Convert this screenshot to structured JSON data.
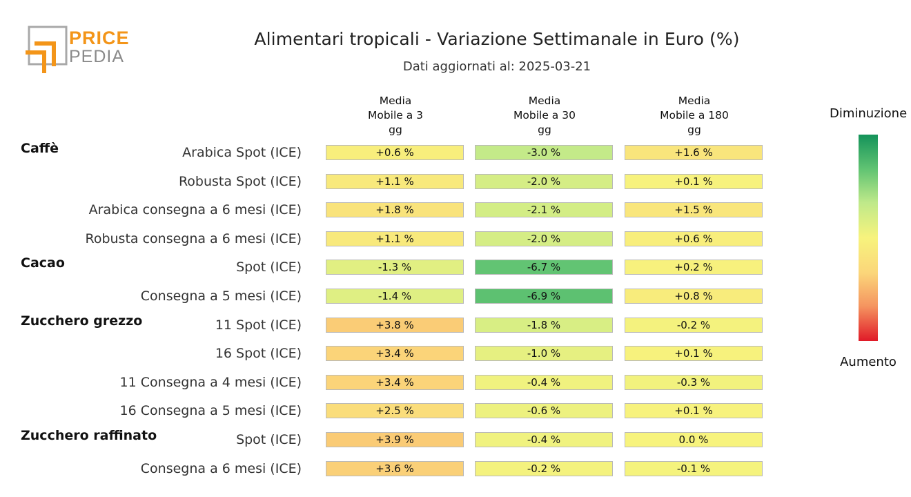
{
  "title": "Alimentari tropicali - Variazione Settimanale in Euro (%)",
  "subtitle": "Dati aggiornati al: 2025-03-21",
  "logo": {
    "top": "PRICE",
    "bottom": "PEDIA"
  },
  "legend": {
    "top_label": "Diminuzione",
    "bottom_label": "Aumento"
  },
  "columns": [
    "Media\nMobile a 3\ngg",
    "Media\nMobile a 30\ngg",
    "Media\nMobile a 180\ngg"
  ],
  "chart_data": {
    "type": "table",
    "title": "Alimentari tropicali - Variazione Settimanale in Euro (%)",
    "columns": [
      "Media Mobile a 3 gg",
      "Media Mobile a 30 gg",
      "Media Mobile a 180 gg"
    ],
    "groups": [
      {
        "name": "Caffè",
        "rows": [
          {
            "label": "Arabica Spot (ICE)",
            "texts": [
              "+0.6 %",
              "-3.0 %",
              "+1.6 %"
            ],
            "values": [
              0.6,
              -3.0,
              1.6
            ]
          },
          {
            "label": "Robusta Spot (ICE)",
            "texts": [
              "+1.1 %",
              "-2.0 %",
              "+0.1 %"
            ],
            "values": [
              1.1,
              -2.0,
              0.1
            ]
          },
          {
            "label": "Arabica consegna a 6 mesi (ICE)",
            "texts": [
              "+1.8 %",
              "-2.1 %",
              "+1.5 %"
            ],
            "values": [
              1.8,
              -2.1,
              1.5
            ]
          },
          {
            "label": "Robusta consegna a 6 mesi (ICE)",
            "texts": [
              "+1.1 %",
              "-2.0 %",
              "+0.6 %"
            ],
            "values": [
              1.1,
              -2.0,
              0.6
            ]
          }
        ]
      },
      {
        "name": "Cacao",
        "rows": [
          {
            "label": "Spot (ICE)",
            "texts": [
              "-1.3 %",
              "-6.7 %",
              "+0.2 %"
            ],
            "values": [
              -1.3,
              -6.7,
              0.2
            ]
          },
          {
            "label": "Consegna a 5 mesi (ICE)",
            "texts": [
              "-1.4 %",
              "-6.9 %",
              "+0.8 %"
            ],
            "values": [
              -1.4,
              -6.9,
              0.8
            ]
          }
        ]
      },
      {
        "name": "Zucchero grezzo",
        "rows": [
          {
            "label": "11 Spot (ICE)",
            "texts": [
              "+3.8 %",
              "-1.8 %",
              "-0.2 %"
            ],
            "values": [
              3.8,
              -1.8,
              -0.2
            ]
          },
          {
            "label": "16 Spot (ICE)",
            "texts": [
              "+3.4 %",
              "-1.0 %",
              "+0.1 %"
            ],
            "values": [
              3.4,
              -1.0,
              0.1
            ]
          },
          {
            "label": "11 Consegna a 4 mesi (ICE)",
            "texts": [
              "+3.4 %",
              "-0.4 %",
              "-0.3 %"
            ],
            "values": [
              3.4,
              -0.4,
              -0.3
            ]
          },
          {
            "label": "16 Consegna a 5 mesi (ICE)",
            "texts": [
              "+2.5 %",
              "-0.6 %",
              "+0.1 %"
            ],
            "values": [
              2.5,
              -0.6,
              0.1
            ]
          }
        ]
      },
      {
        "name": "Zucchero raffinato",
        "rows": [
          {
            "label": "Spot (ICE)",
            "texts": [
              "+3.9 %",
              "-0.4 %",
              "0.0 %"
            ],
            "values": [
              3.9,
              -0.4,
              0.0
            ]
          },
          {
            "label": "Consegna a 6 mesi (ICE)",
            "texts": [
              "+3.6 %",
              "-0.2 %",
              "-0.1 %"
            ],
            "values": [
              3.6,
              -0.2,
              -0.1
            ]
          }
        ]
      }
    ],
    "color_scale": {
      "min": -10,
      "max": 10,
      "low_color": "#14935a",
      "mid_color": "#f7f37d",
      "high_color": "#e01a28"
    }
  }
}
